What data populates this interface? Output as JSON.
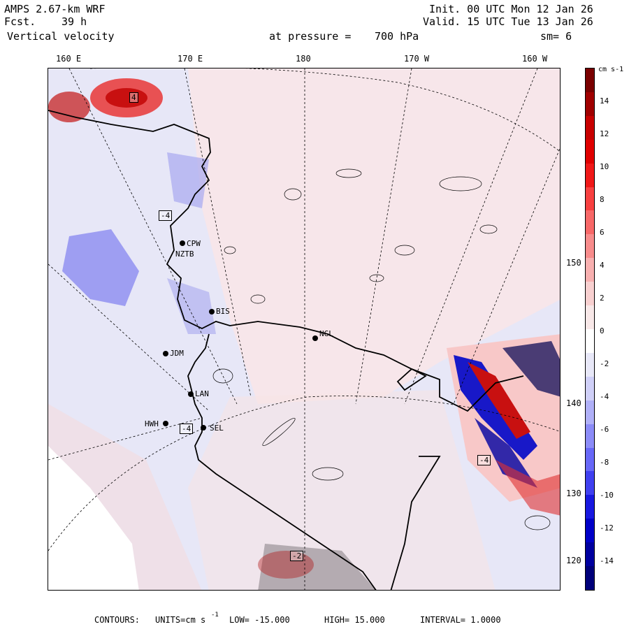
{
  "header": {
    "model": "AMPS 2.67-km WRF",
    "fcst_label": "Fcst.",
    "fcst_value": "39 h",
    "variable": "Vertical velocity",
    "init": "Init. 00 UTC Mon 12 Jan 26",
    "valid": "Valid. 15 UTC Tue 13 Jan 26",
    "level_label": "at pressure =",
    "level_value": "700 hPa",
    "smoothing": "sm= 6"
  },
  "longitude_labels": [
    "160 E",
    "170 E",
    "180",
    "170 W",
    "160 W"
  ],
  "latitude_labels": [
    "150 W",
    "140 W",
    "130 W",
    "120 W"
  ],
  "stations": [
    "CPW",
    "NZTB",
    "BIS",
    "NGL",
    "JDM",
    "LAN",
    "SEL",
    "HWH"
  ],
  "box_labels": [
    "4",
    "-4",
    "-4",
    "-4",
    "-2"
  ],
  "colorbar": {
    "unit": "cm s-1",
    "ticks": [
      "14",
      "12",
      "10",
      "8",
      "6",
      "4",
      "2",
      "0",
      "-2",
      "-4",
      "-6",
      "-8",
      "-10",
      "-12",
      "-14"
    ],
    "colors": [
      "#7a0000",
      "#a00000",
      "#c80000",
      "#e00000",
      "#f01818",
      "#f84040",
      "#f86868",
      "#f88c8c",
      "#f8b0b0",
      "#f8d0d0",
      "#f8e8e8",
      "#ffffff",
      "#e8e8f8",
      "#d0d0f8",
      "#b0b0f8",
      "#8c8cf8",
      "#6868f8",
      "#4040f0",
      "#1818e0",
      "#0000c8",
      "#0000a0",
      "#00007a"
    ]
  },
  "footer": {
    "contours": "CONTOURS:",
    "units_label": "UNITS=cm s",
    "units_exp": "-1",
    "low": "LOW= -15.000",
    "high": "HIGH= 15.000",
    "interval": "INTERVAL= 1.0000"
  }
}
